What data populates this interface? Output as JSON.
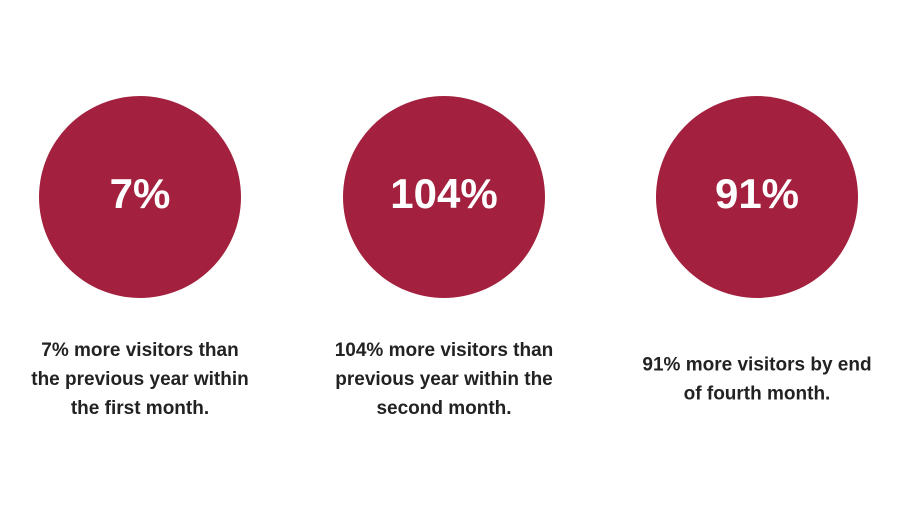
{
  "stats": [
    {
      "value": "7%",
      "description": [
        "7% more visitors than",
        "the previous year within",
        "the first month."
      ]
    },
    {
      "value": "104%",
      "description": [
        "104% more visitors than",
        "previous year within the",
        "second month."
      ]
    },
    {
      "value": "91%",
      "description": [
        "91% more visitors by end",
        "of fourth month."
      ]
    }
  ]
}
